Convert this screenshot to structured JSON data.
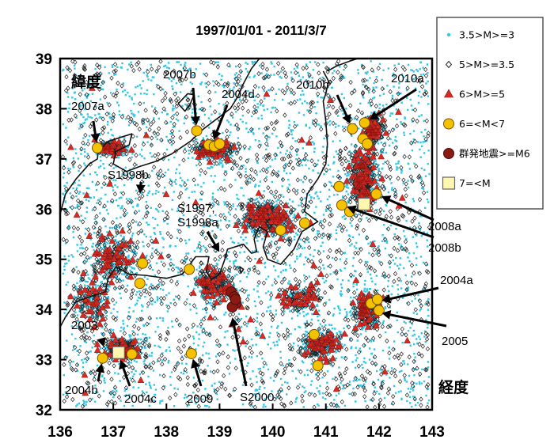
{
  "chart_data": {
    "type": "scatter",
    "title": "1997/01/01 - 2011/3/7",
    "y_axis_label": "緯度",
    "x_axis_label": "経度",
    "xlim": [
      136,
      143
    ],
    "ylim": [
      32,
      39
    ],
    "x_ticks": [
      "136",
      "137",
      "138",
      "139",
      "140",
      "141",
      "142",
      "143"
    ],
    "y_ticks": [
      "32",
      "33",
      "34",
      "35",
      "36",
      "37",
      "38",
      "39"
    ],
    "legend_position": "top-right",
    "legend": [
      {
        "key": "m3",
        "label": "3.5>M>=3",
        "marker": "dot",
        "color": "#33c6e6"
      },
      {
        "key": "m35",
        "label": "5>M>=3.5",
        "marker": "open-diamond",
        "color": "#222222"
      },
      {
        "key": "m5",
        "label": "6>M>=5",
        "marker": "triangle",
        "color": "#d62b25"
      },
      {
        "key": "m6",
        "label": "6=<M<7",
        "marker": "circle",
        "color": "#f5c200"
      },
      {
        "key": "swarm",
        "label": "群発地震>=M6",
        "marker": "circle",
        "color": "#8b1a12"
      },
      {
        "key": "m7",
        "label": "7=<M",
        "marker": "square",
        "color": "#fff6b0"
      }
    ],
    "series": [
      {
        "name": "6=<M<7",
        "key": "m6",
        "points": [
          [
            136.7,
            37.22
          ],
          [
            138.57,
            37.56
          ],
          [
            138.8,
            37.28
          ],
          [
            138.9,
            37.25
          ],
          [
            139.0,
            37.3
          ],
          [
            141.5,
            37.6
          ],
          [
            141.73,
            37.72
          ],
          [
            141.7,
            37.4
          ],
          [
            141.78,
            37.3
          ],
          [
            141.25,
            36.45
          ],
          [
            141.95,
            36.3
          ],
          [
            141.3,
            36.08
          ],
          [
            141.45,
            35.95
          ],
          [
            140.15,
            35.58
          ],
          [
            140.6,
            35.72
          ],
          [
            137.55,
            34.92
          ],
          [
            137.5,
            34.52
          ],
          [
            138.43,
            34.8
          ],
          [
            141.85,
            34.12
          ],
          [
            141.97,
            34.2
          ],
          [
            142.0,
            33.98
          ],
          [
            136.8,
            33.03
          ],
          [
            137.35,
            33.11
          ],
          [
            138.47,
            33.12
          ],
          [
            140.78,
            33.5
          ],
          [
            140.85,
            32.88
          ]
        ]
      },
      {
        "name": "7=<M",
        "key": "m7",
        "points": [
          [
            137.1,
            33.14
          ],
          [
            141.72,
            36.1
          ]
        ]
      },
      {
        "name": "群発地震>=M6",
        "key": "swarm",
        "points": [
          [
            139.22,
            34.35
          ],
          [
            139.28,
            34.25
          ],
          [
            139.31,
            34.12
          ],
          [
            139.24,
            34.05
          ],
          [
            139.3,
            34.2
          ]
        ]
      }
    ],
    "annotations": [
      {
        "text": "2007a",
        "x": 136.7,
        "y": 37.22
      },
      {
        "text": "2007b",
        "x": 138.57,
        "y": 37.56
      },
      {
        "text": "2004d",
        "x": 138.85,
        "y": 37.28
      },
      {
        "text": "2010b",
        "x": 141.5,
        "y": 37.6
      },
      {
        "text": "2010a",
        "x": 141.73,
        "y": 37.72
      },
      {
        "text": "S1998b",
        "x": 137.5,
        "y": 36.2
      },
      {
        "text": "S1997, S1998a",
        "x": 139.05,
        "y": 35.05
      },
      {
        "text": "2008a",
        "x": 141.95,
        "y": 36.3
      },
      {
        "text": "2008b",
        "x": 141.3,
        "y": 36.08
      },
      {
        "text": "2004a",
        "x": 141.95,
        "y": 34.15
      },
      {
        "text": "2005",
        "x": 141.95,
        "y": 33.95
      },
      {
        "text": "2003",
        "x": 136.85,
        "y": 33.15
      },
      {
        "text": "2004b",
        "x": 136.8,
        "y": 33.03
      },
      {
        "text": "2004c",
        "x": 137.1,
        "y": 33.1
      },
      {
        "text": "2009",
        "x": 138.47,
        "y": 33.12
      },
      {
        "text": "S2000",
        "x": 139.22,
        "y": 33.95
      }
    ]
  }
}
